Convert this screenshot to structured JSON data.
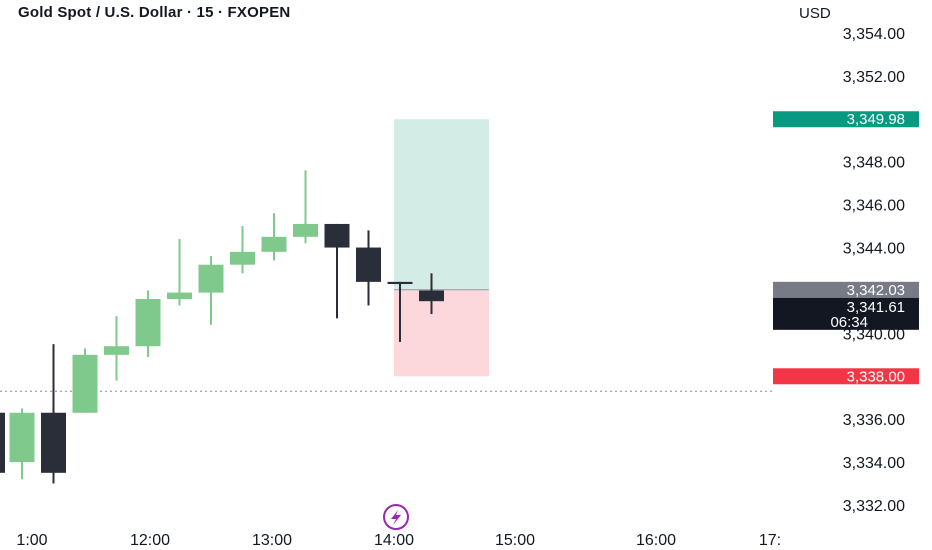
{
  "header": {
    "title": "Gold Spot / U.S. Dollar · 15 · FXOPEN",
    "currency": "USD"
  },
  "colors": {
    "up": "#7fc98c",
    "down": "#2a2e39",
    "profit_zone": "#d4ece6",
    "loss_zone": "#fcd8dc",
    "target_tag": "#089981",
    "stop_tag": "#f23645",
    "entry_tag": "#787b86",
    "last_tag": "#131722",
    "lightning": "#9c27b0"
  },
  "chart_data": {
    "type": "candlestick",
    "y_axis": {
      "min": 3331.4,
      "max": 3355.0,
      "ticks": [
        "3,354.00",
        "3,352.00",
        "3,348.00",
        "3,346.00",
        "3,344.00",
        "3,340.00",
        "3,336.00",
        "3,334.00",
        "3,332.00"
      ],
      "tick_values": [
        3354,
        3352,
        3348,
        3346,
        3344,
        3340,
        3336,
        3334,
        3332
      ]
    },
    "x_axis": {
      "labels": [
        "1:00",
        "12:00",
        "13:00",
        "14:00",
        "15:00",
        "16:00",
        "17:"
      ]
    },
    "candles": [
      {
        "o": 3334.0,
        "h": 3336.5,
        "l": 3333.2,
        "c": 3336.3
      },
      {
        "o": 3336.3,
        "h": 3339.5,
        "l": 3333.0,
        "c": 3333.5
      },
      {
        "o": 3336.3,
        "h": 3339.3,
        "l": 3336.3,
        "c": 3339.0
      },
      {
        "o": 3339.0,
        "h": 3340.8,
        "l": 3337.8,
        "c": 3339.4
      },
      {
        "o": 3339.4,
        "h": 3342.0,
        "l": 3338.9,
        "c": 3341.6
      },
      {
        "o": 3341.6,
        "h": 3344.4,
        "l": 3341.3,
        "c": 3341.9
      },
      {
        "o": 3341.9,
        "h": 3343.6,
        "l": 3340.4,
        "c": 3343.2
      },
      {
        "o": 3343.2,
        "h": 3345.0,
        "l": 3342.8,
        "c": 3343.8
      },
      {
        "o": 3343.8,
        "h": 3345.6,
        "l": 3343.4,
        "c": 3344.5
      },
      {
        "o": 3344.5,
        "h": 3347.6,
        "l": 3344.2,
        "c": 3345.1
      },
      {
        "o": 3345.1,
        "h": 3345.1,
        "l": 3340.7,
        "c": 3344.0
      },
      {
        "o": 3344.0,
        "h": 3344.8,
        "l": 3341.3,
        "c": 3342.4
      },
      {
        "o": 3342.4,
        "h": 3342.4,
        "l": 3339.6,
        "c": 3342.3
      },
      {
        "o": 3342.0,
        "h": 3342.8,
        "l": 3340.9,
        "c": 3341.5
      }
    ],
    "position": {
      "entry": 3342.03,
      "target": 3349.98,
      "stop": 3338.0
    },
    "price_tags": {
      "target": "3,349.98",
      "entry": "3,342.03",
      "last": "3,341.61",
      "countdown": "06:34",
      "stop": "3,338.00"
    },
    "dotted_line_value": 3337.3,
    "grid": false
  }
}
